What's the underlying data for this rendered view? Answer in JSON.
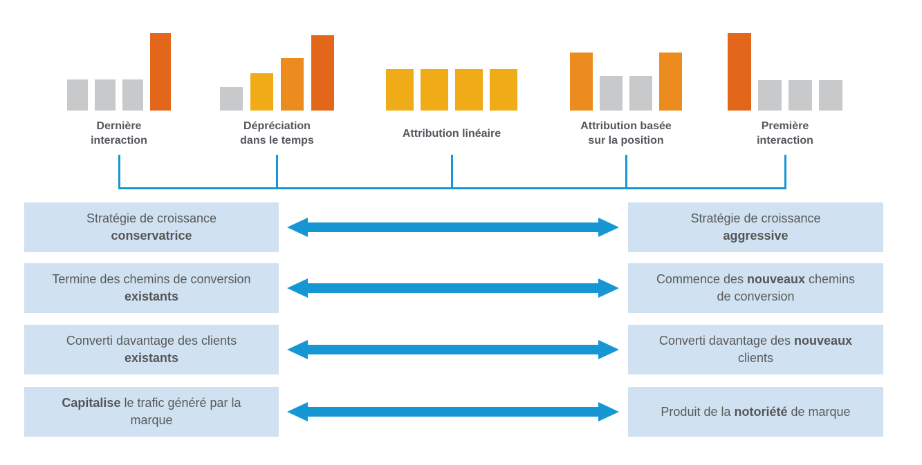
{
  "palette": {
    "dark_orange": "#E3671A",
    "orange": "#EC8C1E",
    "amber": "#F0AC16",
    "gray": "#C8C9CB",
    "blue": "#1697D4",
    "box_bg": "#D0E2F2",
    "box_text": "#595959",
    "label_text": "#54565C"
  },
  "diagram": {
    "models": [
      {
        "id": "last-interaction",
        "label_lines": [
          "Dernière",
          "interaction"
        ],
        "bars": [
          {
            "color": "gray",
            "value": 45
          },
          {
            "color": "gray",
            "value": 45
          },
          {
            "color": "gray",
            "value": 45
          },
          {
            "color": "dark_orange",
            "value": 112
          }
        ]
      },
      {
        "id": "time-decay",
        "label_lines": [
          "Dépréciation",
          "dans le temps"
        ],
        "bars": [
          {
            "color": "gray",
            "value": 34
          },
          {
            "color": "amber",
            "value": 54
          },
          {
            "color": "orange",
            "value": 76
          },
          {
            "color": "dark_orange",
            "value": 109
          }
        ]
      },
      {
        "id": "linear-attribution",
        "label_lines": [
          "Attribution linéaire"
        ],
        "bars": [
          {
            "color": "amber",
            "value": 60
          },
          {
            "color": "amber",
            "value": 60
          },
          {
            "color": "amber",
            "value": 60
          },
          {
            "color": "amber",
            "value": 60
          }
        ]
      },
      {
        "id": "position-based",
        "label_lines": [
          "Attribution basée",
          "sur la position"
        ],
        "bars": [
          {
            "color": "orange",
            "value": 84
          },
          {
            "color": "gray",
            "value": 50
          },
          {
            "color": "gray",
            "value": 50
          },
          {
            "color": "orange",
            "value": 84
          }
        ]
      },
      {
        "id": "first-interaction",
        "label_lines": [
          "Première",
          "interaction"
        ],
        "bars": [
          {
            "color": "dark_orange",
            "value": 112
          },
          {
            "color": "gray",
            "value": 44
          },
          {
            "color": "gray",
            "value": 44
          },
          {
            "color": "gray",
            "value": 44
          }
        ]
      }
    ],
    "comparison_rows": [
      {
        "left": [
          [
            {
              "t": "Stratégie de croissance"
            }
          ],
          [
            {
              "t": "conservatrice",
              "b": true
            }
          ]
        ],
        "right": [
          [
            {
              "t": "Stratégie de croissance"
            }
          ],
          [
            {
              "t": "aggressive",
              "b": true
            }
          ]
        ]
      },
      {
        "left": [
          [
            {
              "t": "Termine des chemins de conversion"
            }
          ],
          [
            {
              "t": "existants",
              "b": true
            }
          ]
        ],
        "right": [
          [
            {
              "t": "Commence des "
            },
            {
              "t": "nouveaux",
              "b": true
            },
            {
              "t": " chemins"
            }
          ],
          [
            {
              "t": "de conversion"
            }
          ]
        ]
      },
      {
        "left": [
          [
            {
              "t": "Converti davantage des clients"
            }
          ],
          [
            {
              "t": "existants",
              "b": true
            }
          ]
        ],
        "right": [
          [
            {
              "t": "Converti davantage des "
            },
            {
              "t": "nouveaux",
              "b": true
            }
          ],
          [
            {
              "t": "clients"
            }
          ]
        ]
      },
      {
        "left": [
          [
            {
              "t": "Capitalise",
              "b": true
            },
            {
              "t": " le trafic généré par la"
            }
          ],
          [
            {
              "t": "marque"
            }
          ]
        ],
        "right": [
          [
            {
              "t": "Produit de la "
            },
            {
              "t": "notoriété",
              "b": true
            },
            {
              "t": " de marque"
            }
          ]
        ]
      }
    ]
  }
}
